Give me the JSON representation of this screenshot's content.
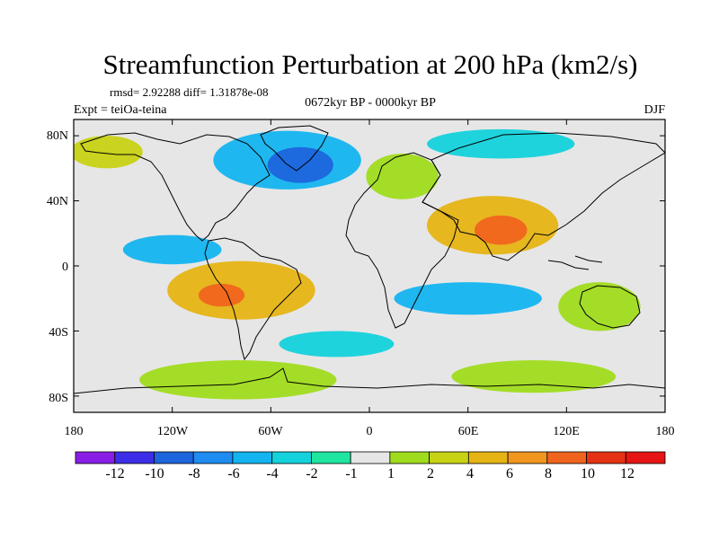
{
  "chart_data": {
    "type": "heatmap",
    "title": "Streamfunction Perturbation at 200 hPa (km2/s)",
    "stats_line": "rmsd= 2.92288 diff= 1.31878e-08",
    "center_label": "0672kyr BP - 0000kyr BP",
    "left_label": "Expt = teiOa-teina",
    "right_label": "DJF",
    "x_ticks": [
      "180",
      "120W",
      "60W",
      "0",
      "60E",
      "120E",
      "180"
    ],
    "x_tick_values": [
      -180,
      -120,
      -60,
      0,
      60,
      120,
      180
    ],
    "y_ticks": [
      "80N",
      "40N",
      "0",
      "40S",
      "80S"
    ],
    "y_tick_values": [
      80,
      40,
      0,
      -40,
      -80
    ],
    "xlim": [
      -180,
      180
    ],
    "ylim": [
      -90,
      90
    ],
    "colorbar": {
      "labels": [
        "-12",
        "-10",
        "-8",
        "-6",
        "-4",
        "-2",
        "-1",
        "1",
        "2",
        "4",
        "6",
        "8",
        "10",
        "12"
      ],
      "colors": [
        "#8a1ee6",
        "#3c2ee6",
        "#1e64dc",
        "#1e8cf0",
        "#14b4f0",
        "#14d2dc",
        "#1ee6a0",
        "#e6e6e6",
        "#a0dc1e",
        "#c8d214",
        "#e6b414",
        "#f0961e",
        "#f0641e",
        "#e63214",
        "#e61414"
      ]
    },
    "features": [
      {
        "name": "n-pacific-high",
        "level": 4,
        "lon": -160,
        "lat": 70,
        "rx": 22,
        "ry": 10
      },
      {
        "name": "n-atlantic-low",
        "level": -8,
        "lon": -42,
        "lat": 62,
        "rx": 20,
        "ry": 11
      },
      {
        "name": "n-atlantic-low-outer",
        "level": -4,
        "lon": -50,
        "lat": 65,
        "rx": 45,
        "ry": 18
      },
      {
        "name": "europe-high",
        "level": 2,
        "lon": 20,
        "lat": 55,
        "rx": 22,
        "ry": 14
      },
      {
        "name": "asia-high",
        "level": 10,
        "lon": 80,
        "lat": 22,
        "rx": 16,
        "ry": 9
      },
      {
        "name": "asia-high-outer",
        "level": 6,
        "lon": 75,
        "lat": 25,
        "rx": 40,
        "ry": 18
      },
      {
        "name": "siberia-low",
        "level": -2,
        "lon": 80,
        "lat": 75,
        "rx": 45,
        "ry": 9
      },
      {
        "name": "s-america-high",
        "level": 10,
        "lon": -90,
        "lat": -18,
        "rx": 14,
        "ry": 7
      },
      {
        "name": "s-america-high-outer",
        "level": 6,
        "lon": -78,
        "lat": -15,
        "rx": 45,
        "ry": 18
      },
      {
        "name": "tropic-pacific-low",
        "level": -4,
        "lon": -120,
        "lat": 10,
        "rx": 30,
        "ry": 9
      },
      {
        "name": "indian-ocean-low",
        "level": -4,
        "lon": 60,
        "lat": -20,
        "rx": 45,
        "ry": 10
      },
      {
        "name": "australia-high",
        "level": 2,
        "lon": 140,
        "lat": -25,
        "rx": 25,
        "ry": 15
      },
      {
        "name": "southern-high",
        "level": 2,
        "lon": -80,
        "lat": -70,
        "rx": 60,
        "ry": 12
      },
      {
        "name": "southern-east-high",
        "level": 2,
        "lon": 100,
        "lat": -68,
        "rx": 50,
        "ry": 10
      },
      {
        "name": "s-atlantic-low",
        "level": -2,
        "lon": -20,
        "lat": -48,
        "rx": 35,
        "ry": 8
      }
    ]
  }
}
